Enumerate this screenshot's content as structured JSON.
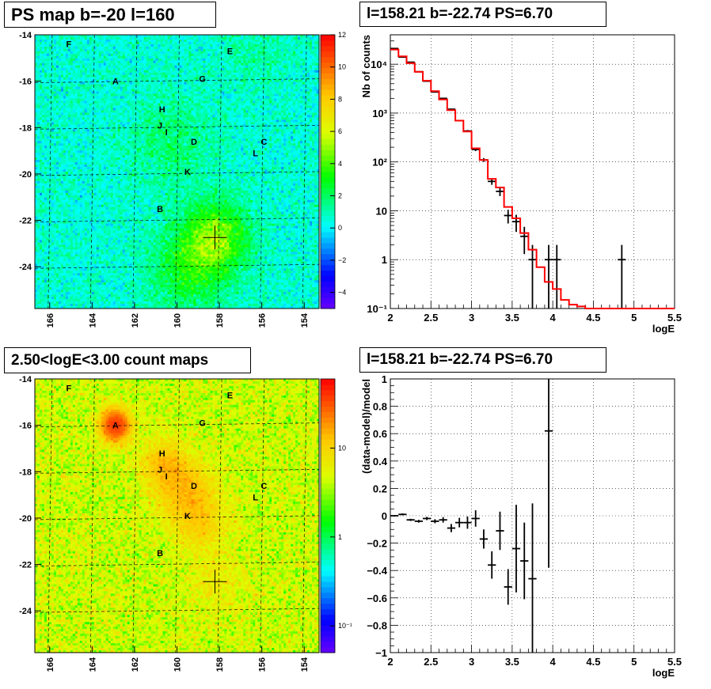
{
  "chart_data": [
    {
      "type": "heatmap",
      "title": "PS map b=-20 l=160",
      "xlim": [
        166.7,
        153.3
      ],
      "ylim": [
        -25.8,
        -14
      ],
      "xticks": [
        166,
        164,
        162,
        160,
        158,
        156,
        154
      ],
      "xtick_labels": [
        "166",
        "164",
        "162",
        "160",
        "158",
        "156",
        "154"
      ],
      "yticks": [
        -14,
        -16,
        -18,
        -20,
        -22,
        -24
      ],
      "ytick_labels": [
        "-14",
        "-16",
        "-18",
        "-20",
        "-22",
        "-24"
      ],
      "color_scale": "linear",
      "colorbar_range": [
        -5,
        12
      ],
      "colorbar_ticks": [
        -4,
        -2,
        0,
        2,
        4,
        6,
        8,
        10,
        12
      ],
      "colorbar_labels": [
        "−4",
        "−2",
        "0",
        "2",
        "4",
        "6",
        "8",
        "10",
        "12"
      ],
      "grid": true,
      "marker": {
        "lon": 158.21,
        "lat": -22.74
      },
      "sources": [
        {
          "label": "F",
          "lon": 165.1,
          "lat": -14.4
        },
        {
          "label": "E",
          "lon": 157.5,
          "lat": -14.7
        },
        {
          "label": "A",
          "lon": 162.9,
          "lat": -16.0
        },
        {
          "label": "G",
          "lon": 158.8,
          "lat": -15.9
        },
        {
          "label": "H",
          "lon": 160.7,
          "lat": -17.2
        },
        {
          "label": "J",
          "lon": 160.8,
          "lat": -17.9
        },
        {
          "label": "I",
          "lon": 160.5,
          "lat": -18.2
        },
        {
          "label": "D",
          "lon": 159.2,
          "lat": -18.6
        },
        {
          "label": "C",
          "lon": 155.9,
          "lat": -18.6
        },
        {
          "label": "L",
          "lon": 156.3,
          "lat": -19.1
        },
        {
          "label": "K",
          "lon": 159.5,
          "lat": -19.9
        },
        {
          "label": "B",
          "lon": 160.8,
          "lat": -21.5
        }
      ]
    },
    {
      "type": "line",
      "title": "l=158.21 b=-22.74 PS=6.70",
      "xlabel": "logE",
      "ylabel": "Nb of counts",
      "xlim": [
        2,
        5.5
      ],
      "ylim": [
        0.1,
        40000
      ],
      "yscale": "log",
      "xticks": [
        2,
        2.5,
        3,
        3.5,
        4,
        4.5,
        5,
        5.5
      ],
      "xtick_labels": [
        "2",
        "2.5",
        "3",
        "3.5",
        "4",
        "4.5",
        "5",
        "5.5"
      ],
      "yticks": [
        0.1,
        1,
        10,
        100,
        1000,
        10000
      ],
      "ytick_labels": [
        "10⁻¹",
        "1",
        "10",
        "10²",
        "10³",
        "10⁴"
      ],
      "grid": true,
      "series": [
        {
          "kind": "points",
          "x": [
            2.05,
            2.15,
            2.25,
            2.35,
            2.45,
            2.55,
            2.65,
            2.75,
            2.85,
            2.95,
            3.05,
            3.15,
            3.25,
            3.35,
            3.45,
            3.55,
            3.65,
            3.75,
            3.95,
            4.05,
            4.85
          ],
          "y": [
            21000,
            14000,
            11000,
            7000,
            4500,
            2700,
            2000,
            1200,
            700,
            430,
            180,
            110,
            40,
            25,
            8,
            6,
            3,
            1,
            1,
            1,
            1
          ],
          "xerr": 0.05,
          "yerr_low": [
            150,
            120,
            100,
            80,
            70,
            55,
            45,
            35,
            26,
            20,
            13,
            10,
            6,
            5,
            2.5,
            2.3,
            1.7,
            1,
            1,
            1,
            1
          ],
          "yerr_high": [
            150,
            120,
            100,
            80,
            70,
            55,
            45,
            35,
            26,
            20,
            13,
            10,
            6,
            5,
            2.5,
            2.3,
            1.7,
            1,
            1,
            1,
            1
          ],
          "color": "#000000"
        },
        {
          "kind": "step",
          "edges": [
            2.0,
            2.1,
            2.2,
            2.3,
            2.4,
            2.5,
            2.6,
            2.7,
            2.8,
            2.9,
            3.0,
            3.1,
            3.2,
            3.3,
            3.4,
            3.5,
            3.6,
            3.7,
            3.8,
            3.9,
            4.0,
            4.1,
            4.2,
            4.3,
            4.4,
            5.5
          ],
          "values": [
            20000,
            14500,
            10500,
            7000,
            4600,
            2800,
            1900,
            1150,
            700,
            420,
            190,
            110,
            45,
            30,
            12,
            7,
            3.5,
            1.6,
            0.7,
            0.35,
            0.25,
            0.15,
            0.12,
            0.11,
            0.1
          ],
          "color": "#ff0000"
        }
      ]
    },
    {
      "type": "heatmap",
      "title": "2.50<logE<3.00 count maps",
      "xlim": [
        166.7,
        153.3
      ],
      "ylim": [
        -25.8,
        -14
      ],
      "xticks": [
        166,
        164,
        162,
        160,
        158,
        156,
        154
      ],
      "xtick_labels": [
        "166",
        "164",
        "162",
        "160",
        "158",
        "156",
        "154"
      ],
      "yticks": [
        -14,
        -16,
        -18,
        -20,
        -22,
        -24
      ],
      "ytick_labels": [
        "-14",
        "-16",
        "-18",
        "-20",
        "-22",
        "-24"
      ],
      "color_scale": "log",
      "colorbar_range": [
        0.05,
        60
      ],
      "colorbar_ticks": [
        0.1,
        1,
        10
      ],
      "colorbar_labels": [
        "10⁻¹",
        "1",
        "10"
      ],
      "grid": true,
      "marker": {
        "lon": 158.21,
        "lat": -22.74
      },
      "sources": [
        {
          "label": "F",
          "lon": 165.1,
          "lat": -14.4
        },
        {
          "label": "E",
          "lon": 157.5,
          "lat": -14.7
        },
        {
          "label": "A",
          "lon": 162.9,
          "lat": -16.0
        },
        {
          "label": "G",
          "lon": 158.8,
          "lat": -15.9
        },
        {
          "label": "H",
          "lon": 160.7,
          "lat": -17.2
        },
        {
          "label": "J",
          "lon": 160.8,
          "lat": -17.9
        },
        {
          "label": "I",
          "lon": 160.5,
          "lat": -18.2
        },
        {
          "label": "D",
          "lon": 159.2,
          "lat": -18.6
        },
        {
          "label": "C",
          "lon": 155.9,
          "lat": -18.6
        },
        {
          "label": "L",
          "lon": 156.3,
          "lat": -19.1
        },
        {
          "label": "K",
          "lon": 159.5,
          "lat": -19.9
        },
        {
          "label": "B",
          "lon": 160.8,
          "lat": -21.5
        }
      ]
    },
    {
      "type": "scatter",
      "title": "l=158.21 b=-22.74 PS=6.70",
      "xlabel": "logE",
      "ylabel": "(data-model)/model",
      "xlim": [
        2,
        5.5
      ],
      "ylim": [
        -1,
        1
      ],
      "xticks": [
        2,
        2.5,
        3,
        3.5,
        4,
        4.5,
        5,
        5.5
      ],
      "xtick_labels": [
        "2",
        "2.5",
        "3",
        "3.5",
        "4",
        "4.5",
        "5",
        "5.5"
      ],
      "yticks": [
        -1,
        -0.8,
        -0.6,
        -0.4,
        -0.2,
        0,
        0.2,
        0.4,
        0.6,
        0.8,
        1
      ],
      "ytick_labels": [
        "−1",
        "−0.8",
        "−0.6",
        "−0.4",
        "−0.2",
        "0",
        "0.2",
        "0.4",
        "0.6",
        "0.8",
        "1"
      ],
      "grid": true,
      "series": [
        {
          "kind": "points",
          "x": [
            2.05,
            2.15,
            2.25,
            2.35,
            2.45,
            2.55,
            2.65,
            2.75,
            2.85,
            2.95,
            3.05,
            3.15,
            3.25,
            3.35,
            3.45,
            3.55,
            3.65,
            3.75,
            3.95
          ],
          "y": [
            0.0,
            0.01,
            -0.03,
            -0.04,
            -0.02,
            -0.04,
            -0.03,
            -0.09,
            -0.05,
            -0.05,
            -0.02,
            -0.17,
            -0.36,
            -0.11,
            -0.52,
            -0.24,
            -0.33,
            -0.46,
            0.62
          ],
          "xerr": 0.05,
          "yerr": [
            0.005,
            0.007,
            0.008,
            0.01,
            0.012,
            0.015,
            0.02,
            0.03,
            0.035,
            0.045,
            0.06,
            0.07,
            0.1,
            0.14,
            0.13,
            0.32,
            0.28,
            0.55,
            1.0
          ],
          "color": "#000000"
        }
      ]
    }
  ]
}
